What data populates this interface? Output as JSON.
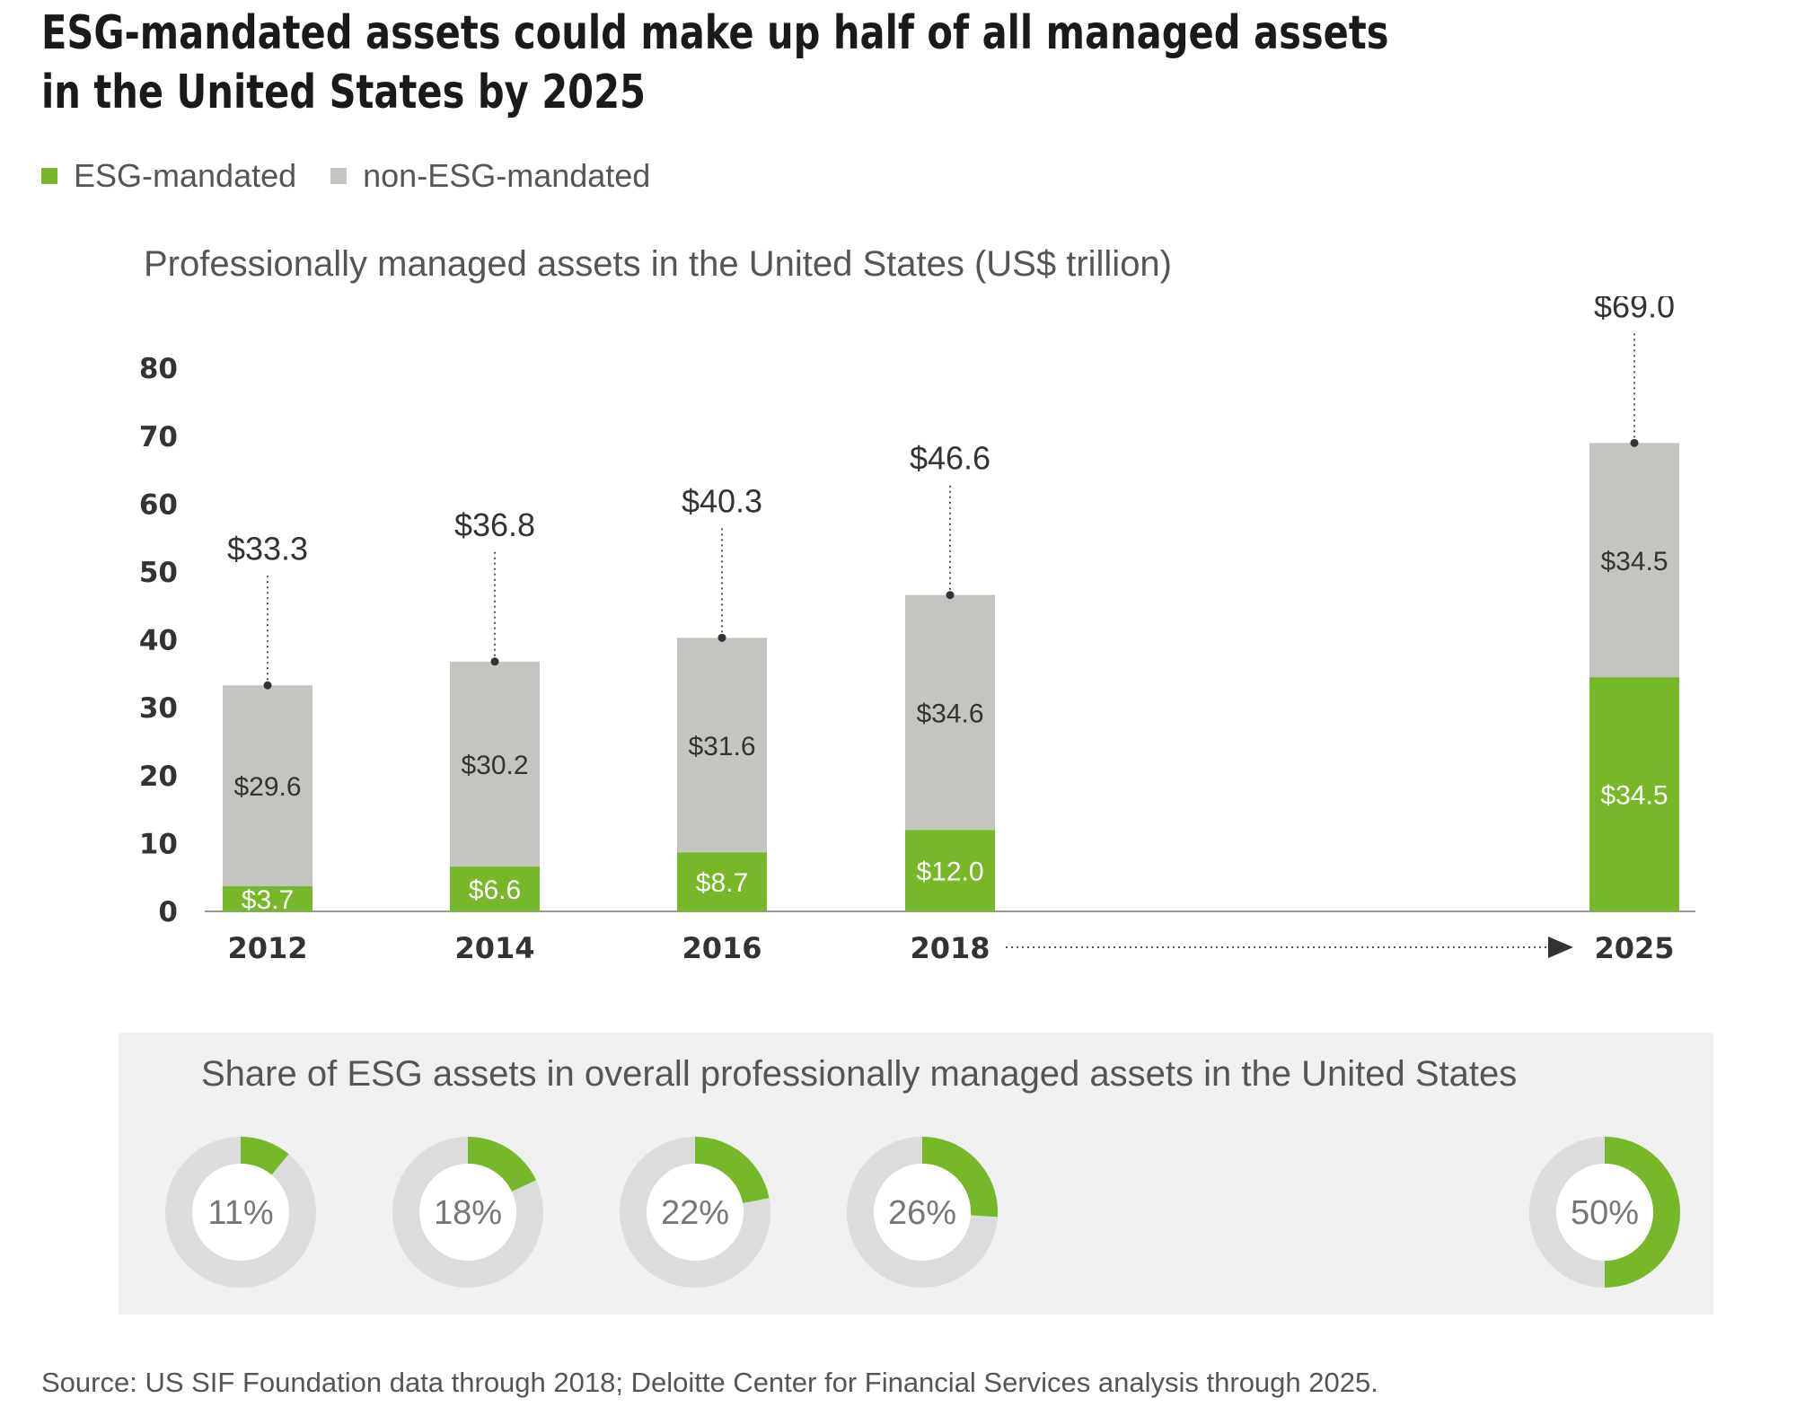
{
  "title": "ESG-mandated assets could make up half of all managed assets in the United States by 2025",
  "legend": [
    {
      "label": "ESG-mandated",
      "color": "#76b82a"
    },
    {
      "label": "non-ESG-mandated",
      "color": "#c4c4c0"
    }
  ],
  "chart_data": [
    {
      "type": "bar",
      "stacked": true,
      "title": "Professionally managed assets in the United States (US$ trillion)",
      "categories": [
        "2012",
        "2014",
        "2016",
        "2018",
        "2025"
      ],
      "series": [
        {
          "name": "ESG-mandated",
          "color": "#76b82a",
          "values": [
            3.7,
            6.6,
            8.7,
            12.0,
            34.5
          ],
          "labels": [
            "$3.7",
            "$6.6",
            "$8.7",
            "$12.0",
            "$34.5"
          ]
        },
        {
          "name": "non-ESG-mandated",
          "color": "#c4c4c0",
          "values": [
            29.6,
            30.2,
            31.6,
            34.6,
            34.5
          ],
          "labels": [
            "$29.6",
            "$30.2",
            "$31.6",
            "$34.6",
            "$34.5"
          ]
        }
      ],
      "totals": [
        33.3,
        36.8,
        40.3,
        46.6,
        69.0
      ],
      "total_labels": [
        "$33.3",
        "$36.8",
        "$40.3",
        "$46.6",
        "$69.0"
      ],
      "yticks": [
        "0",
        "10",
        "20",
        "30",
        "40",
        "50",
        "60",
        "70",
        "80"
      ],
      "ylim": [
        0,
        80
      ],
      "grid": false,
      "legend_position": "top-left"
    },
    {
      "type": "pie",
      "style": "donut",
      "title": "Share of ESG assets in overall professionally managed assets in the United States",
      "categories": [
        "2012",
        "2014",
        "2016",
        "2018",
        "2025"
      ],
      "values": [
        11,
        18,
        22,
        26,
        50
      ],
      "labels": [
        "11%",
        "18%",
        "22%",
        "26%",
        "50%"
      ],
      "colors": {
        "esg": "#76b82a",
        "rest": "#dcdcdc"
      }
    }
  ],
  "source": "Source: US SIF Foundation data through 2018; Deloitte Center for Financial Services analysis through 2025."
}
